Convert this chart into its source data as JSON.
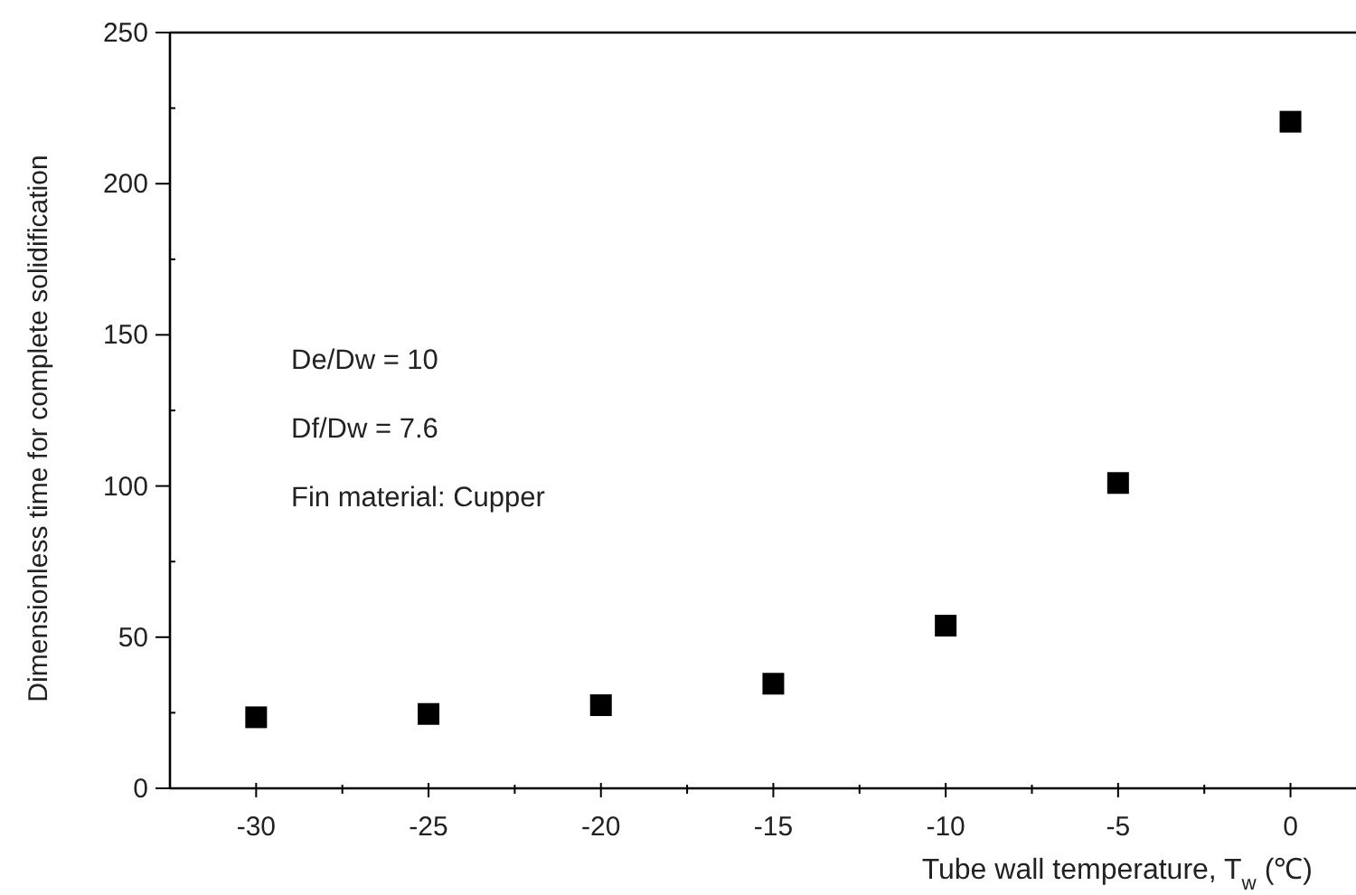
{
  "chart_data": {
    "type": "scatter",
    "xlabel": "Tube wall temperature, T$_{w}$ (℃)",
    "ylabel": "Dimensionless time for complete solidification",
    "x": [
      -30,
      -25,
      -20,
      -15,
      -10,
      -5,
      0
    ],
    "series": [
      {
        "color": "#000000",
        "values": [
          23.5,
          24.6,
          27.5,
          34.6,
          53.8,
          101,
          220.5
        ]
      }
    ],
    "marker": "square",
    "xlim": [
      -32.5,
      1.9
    ],
    "ylim": [
      0,
      250
    ],
    "xticks": [
      -30,
      {
        "value": -27.5,
        "label": null
      },
      -25,
      {
        "value": -22.5,
        "label": null
      },
      -20,
      {
        "value": -17.5,
        "label": null
      },
      -15,
      {
        "value": -12.5,
        "label": null
      },
      -10,
      {
        "value": -7.5,
        "label": null
      },
      -5,
      {
        "value": -2.5,
        "label": null
      },
      0
    ],
    "yticks": [
      0,
      {
        "value": 25,
        "label": null
      },
      50,
      {
        "value": 75,
        "label": null
      },
      100,
      {
        "value": 125,
        "label": null
      },
      150,
      {
        "value": 175,
        "label": null
      },
      200,
      {
        "value": 225,
        "label": null
      },
      250
    ],
    "annotations": [
      "De/Dw = 10",
      "Df/Dw = 7.6",
      "Fin material: Cupper"
    ]
  }
}
